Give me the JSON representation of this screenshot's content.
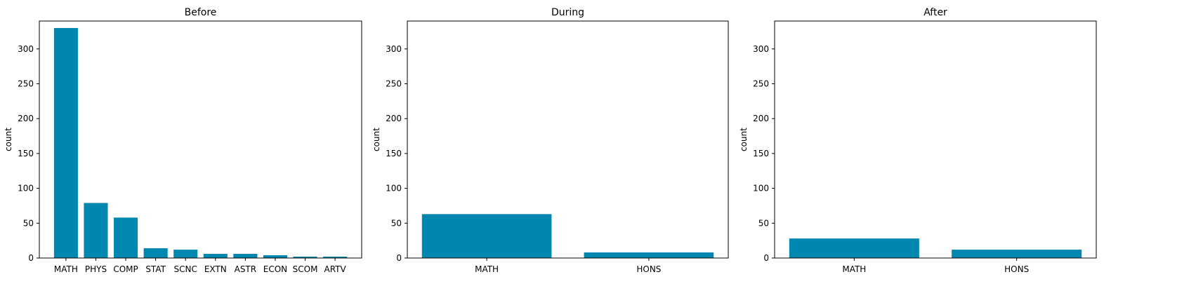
{
  "chart_data": [
    {
      "type": "bar",
      "title": "Before",
      "xlabel": "",
      "ylabel": "count",
      "categories": [
        "MATH",
        "PHYS",
        "COMP",
        "STAT",
        "SCNC",
        "EXTN",
        "ASTR",
        "ECON",
        "SCOM",
        "ARTV"
      ],
      "values": [
        330,
        79,
        58,
        14,
        12,
        6,
        6,
        4,
        2,
        2
      ],
      "ylim": [
        0,
        340
      ],
      "yticks": [
        0,
        50,
        100,
        150,
        200,
        250,
        300
      ],
      "color": "#0087AF",
      "grid": false
    },
    {
      "type": "bar",
      "title": "During",
      "xlabel": "",
      "ylabel": "count",
      "categories": [
        "MATH",
        "HONS"
      ],
      "values": [
        63,
        8
      ],
      "ylim": [
        0,
        340
      ],
      "yticks": [
        0,
        50,
        100,
        150,
        200,
        250,
        300
      ],
      "color": "#0087AF",
      "grid": false
    },
    {
      "type": "bar",
      "title": "After",
      "xlabel": "",
      "ylabel": "count",
      "categories": [
        "MATH",
        "HONS"
      ],
      "values": [
        28,
        12
      ],
      "ylim": [
        0,
        340
      ],
      "yticks": [
        0,
        50,
        100,
        150,
        200,
        250,
        300
      ],
      "color": "#0087AF",
      "grid": false
    }
  ]
}
